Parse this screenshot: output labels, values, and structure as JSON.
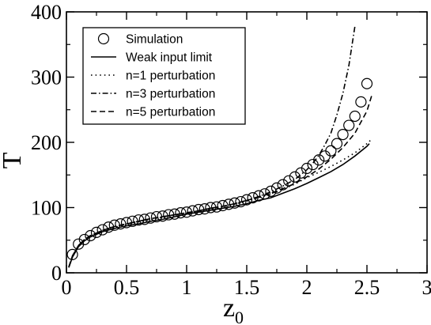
{
  "chart_data": {
    "type": "line",
    "xlabel": "z",
    "xlabel_sub": "0",
    "ylabel": "T",
    "xlim": [
      0,
      3
    ],
    "ylim": [
      0,
      400
    ],
    "x_ticks": [
      "0",
      "0.5",
      "1",
      "1.5",
      "2",
      "2.5",
      "3"
    ],
    "y_ticks": [
      "0",
      "100",
      "200",
      "300",
      "400"
    ],
    "grid": false,
    "legend_position": "top-left",
    "series": [
      {
        "name": "Simulation",
        "style": "markers",
        "marker": "open-circle",
        "x": [
          0.05,
          0.1,
          0.15,
          0.2,
          0.25,
          0.3,
          0.35,
          0.4,
          0.45,
          0.5,
          0.55,
          0.6,
          0.65,
          0.7,
          0.75,
          0.8,
          0.85,
          0.9,
          0.95,
          1.0,
          1.05,
          1.1,
          1.15,
          1.2,
          1.25,
          1.3,
          1.35,
          1.4,
          1.45,
          1.5,
          1.55,
          1.6,
          1.65,
          1.7,
          1.75,
          1.8,
          1.85,
          1.9,
          1.95,
          2.0,
          2.05,
          2.1,
          2.15,
          2.2,
          2.25,
          2.3,
          2.35,
          2.4,
          2.45,
          2.5
        ],
        "y": [
          28,
          44,
          51,
          57,
          62,
          66,
          70,
          73,
          75,
          77,
          79,
          81,
          82,
          84,
          86,
          87,
          89,
          90,
          92,
          93,
          95,
          97,
          98,
          100,
          101,
          103,
          105,
          107,
          109,
          112,
          115,
          118,
          121,
          125,
          130,
          135,
          141,
          147,
          153,
          160,
          166,
          173,
          179,
          187,
          198,
          212,
          226,
          240,
          262,
          290
        ]
      },
      {
        "name": "Weak input limit",
        "style": "solid",
        "x": [
          0.02,
          0.05,
          0.1,
          0.15,
          0.2,
          0.3,
          0.4,
          0.5,
          0.6,
          0.7,
          0.8,
          0.9,
          1.0,
          1.1,
          1.2,
          1.3,
          1.4,
          1.5,
          1.6,
          1.7,
          1.8,
          1.9,
          2.0,
          2.1,
          2.2,
          2.3,
          2.4,
          2.5,
          2.52
        ],
        "y": [
          8,
          24,
          40,
          49,
          55,
          63,
          68,
          72,
          75,
          79,
          82,
          86,
          90,
          93,
          96,
          99,
          102,
          106,
          111,
          115,
          122,
          129,
          137,
          146,
          155,
          166,
          179,
          194,
          198
        ]
      },
      {
        "name": "n=1 perturbation",
        "style": "dotted",
        "x": [
          0.02,
          0.05,
          0.1,
          0.15,
          0.2,
          0.3,
          0.4,
          0.5,
          0.6,
          0.7,
          0.8,
          0.9,
          1.0,
          1.1,
          1.2,
          1.3,
          1.4,
          1.5,
          1.6,
          1.7,
          1.8,
          1.9,
          2.0,
          2.1,
          2.2,
          2.3,
          2.4,
          2.5,
          2.54
        ],
        "y": [
          9,
          25,
          41,
          50,
          56,
          64,
          70,
          74,
          78,
          82,
          85,
          88,
          91,
          95,
          98,
          101,
          105,
          110,
          115,
          121,
          128,
          136,
          146,
          154,
          163,
          173,
          184,
          198,
          205
        ]
      },
      {
        "name": "n=3 perturbation",
        "style": "dashdot",
        "x": [
          0.02,
          0.05,
          0.1,
          0.15,
          0.2,
          0.3,
          0.4,
          0.5,
          0.6,
          0.7,
          0.8,
          0.9,
          1.0,
          1.1,
          1.2,
          1.3,
          1.4,
          1.5,
          1.6,
          1.7,
          1.8,
          1.9,
          2.0,
          2.05,
          2.1,
          2.15,
          2.2,
          2.25,
          2.3,
          2.35,
          2.4
        ],
        "y": [
          9,
          26,
          42,
          51,
          57,
          65,
          71,
          75,
          79,
          83,
          86,
          89,
          92,
          95,
          99,
          102,
          106,
          111,
          117,
          124,
          133,
          143,
          158,
          168,
          180,
          196,
          214,
          242,
          275,
          318,
          378
        ]
      },
      {
        "name": "n=5 perturbation",
        "style": "dashed",
        "x": [
          0.02,
          0.05,
          0.1,
          0.15,
          0.2,
          0.3,
          0.4,
          0.5,
          0.6,
          0.7,
          0.8,
          0.9,
          1.0,
          1.1,
          1.2,
          1.3,
          1.4,
          1.5,
          1.6,
          1.7,
          1.8,
          1.9,
          2.0,
          2.1,
          2.2,
          2.3,
          2.4,
          2.5,
          2.54
        ],
        "y": [
          9,
          26,
          42,
          51,
          57,
          65,
          71,
          75,
          79,
          83,
          86,
          89,
          92,
          95,
          99,
          102,
          106,
          111,
          116,
          122,
          129,
          137,
          147,
          159,
          174,
          192,
          214,
          248,
          272
        ]
      }
    ]
  }
}
